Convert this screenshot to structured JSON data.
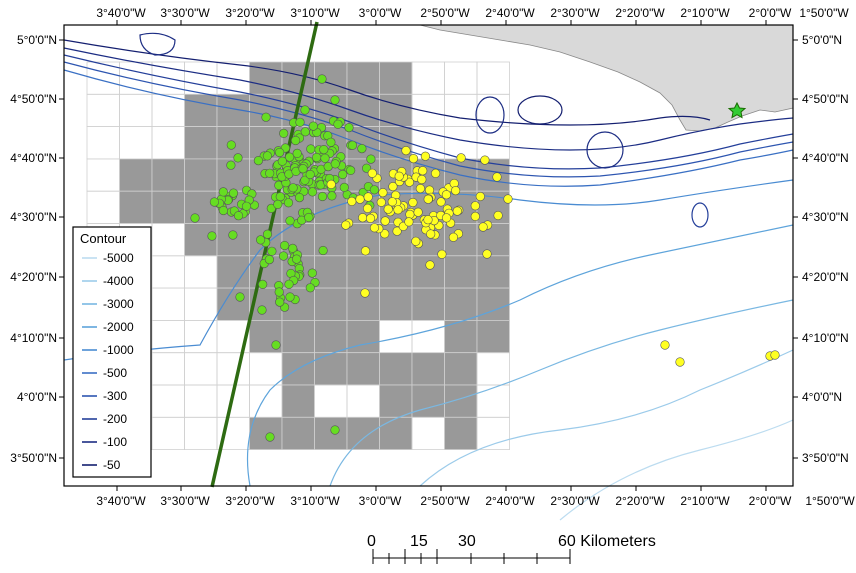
{
  "map": {
    "top_lon_labels": [
      "3°40'0\"W",
      "3°30'0\"W",
      "3°20'0\"W",
      "3°10'0\"W",
      "3°0'0\"W",
      "2°50'0\"W",
      "2°40'0\"W",
      "2°30'0\"W",
      "2°20'0\"W",
      "2°10'0\"W",
      "2°0'0\"W",
      "1°50'0\"W"
    ],
    "bottom_lon_labels": [
      "3°40'0\"W",
      "3°30'0\"W",
      "3°20'0\"W",
      "3°10'0\"W",
      "3°0'0\"W",
      "2°50'0\"W",
      "2°40'0\"W",
      "2°30'0\"W",
      "2°20'0\"W",
      "2°10'0\"W",
      "2°0'0\"W",
      "1°50'0\"W"
    ],
    "left_lat_labels": [
      "5°0'0\"N",
      "4°50'0\"N",
      "4°40'0\"N",
      "4°30'0\"N",
      "4°20'0\"N",
      "4°10'0\"N",
      "4°0'0\"N",
      "3°50'0\"N"
    ],
    "right_lat_labels": [
      "5°0'0\"N",
      "4°50'0\"N",
      "4°40'0\"N",
      "4°30'0\"N",
      "4°20'0\"N",
      "4°10'0\"N",
      "4°0'0\"N",
      "3°50'0\"N"
    ],
    "colors": {
      "land": "#d9d9d9",
      "grid_filled": "#999999",
      "grid_line": "#d0d0d0",
      "green_points": "#66dd22",
      "yellow_points": "#ffff22",
      "track_line": "#2e6b12",
      "star": "#33cc33"
    }
  },
  "legend": {
    "title": "Contour",
    "items": [
      {
        "label": "-5000",
        "color": "#bcdcf0"
      },
      {
        "label": "-4000",
        "color": "#9ccbea"
      },
      {
        "label": "-3000",
        "color": "#7ab8e2"
      },
      {
        "label": "-2000",
        "color": "#5ea4db"
      },
      {
        "label": "-1000",
        "color": "#4a8cd2"
      },
      {
        "label": "-500",
        "color": "#3a70c4"
      },
      {
        "label": "-300",
        "color": "#2d55b0"
      },
      {
        "label": "-200",
        "color": "#243f9a"
      },
      {
        "label": "-100",
        "color": "#1c2d84"
      },
      {
        "label": "-50",
        "color": "#141f70"
      }
    ]
  },
  "scale_bar": {
    "labels": [
      "0",
      "15",
      "30",
      "60 Kilometers"
    ]
  }
}
